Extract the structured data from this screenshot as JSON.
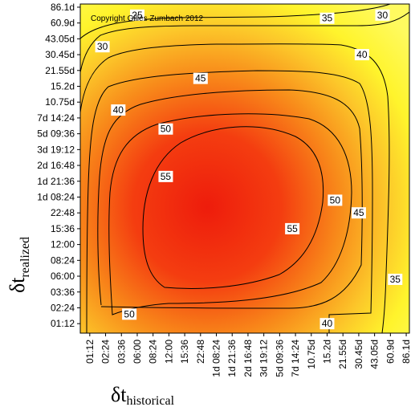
{
  "chart_data": {
    "type": "heatmap",
    "title": "",
    "copyright": "Copyright Gilles Zumbach 2012",
    "xlabel_symbol": "δt",
    "xlabel_sub": "historical",
    "ylabel_symbol": "δt",
    "ylabel_sub": "realized",
    "x_ticks": [
      "01:12",
      "02:24",
      "03:36",
      "06:00",
      "08:24",
      "12:00",
      "15:36",
      "22:48",
      "1d 08:24",
      "1d 21:36",
      "2d 16:48",
      "3d 19:12",
      "5d 09:36",
      "7d 14:24",
      "10.75d",
      "15.2d",
      "21.55d",
      "30.45d",
      "43.05d",
      "60.9d",
      "86.1d"
    ],
    "y_ticks": [
      "01:12",
      "02:24",
      "03:36",
      "06:00",
      "08:24",
      "12:00",
      "15:36",
      "22:48",
      "1d 08:24",
      "1d 21:36",
      "2d 16:48",
      "3d 19:12",
      "5d 09:36",
      "7d 14:24",
      "10.75d",
      "15.2d",
      "21.55d",
      "30.45d",
      "43.05d",
      "60.9d",
      "86.1d"
    ],
    "contour_levels": [
      25,
      30,
      35,
      40,
      45,
      50,
      55
    ],
    "contour_labels": [
      {
        "text": "25",
        "x": 3.0,
        "y": 19.5
      },
      {
        "text": "30",
        "x": 0.8,
        "y": 17.5
      },
      {
        "text": "30",
        "x": 18.5,
        "y": 19.5
      },
      {
        "text": "35",
        "x": 15.0,
        "y": 19.3
      },
      {
        "text": "35",
        "x": 19.3,
        "y": 2.8
      },
      {
        "text": "40",
        "x": 1.8,
        "y": 13.5
      },
      {
        "text": "40",
        "x": 17.2,
        "y": 17.0
      },
      {
        "text": "40",
        "x": 15.0,
        "y": 0.0
      },
      {
        "text": "45",
        "x": 7.0,
        "y": 15.5
      },
      {
        "text": "45",
        "x": 17.0,
        "y": 7.0
      },
      {
        "text": "50",
        "x": 4.8,
        "y": 12.3
      },
      {
        "text": "50",
        "x": 15.5,
        "y": 7.8
      },
      {
        "text": "50",
        "x": 2.5,
        "y": 0.6
      },
      {
        "text": "55",
        "x": 4.8,
        "y": 9.3
      },
      {
        "text": "55",
        "x": 12.8,
        "y": 6.0
      }
    ]
  }
}
